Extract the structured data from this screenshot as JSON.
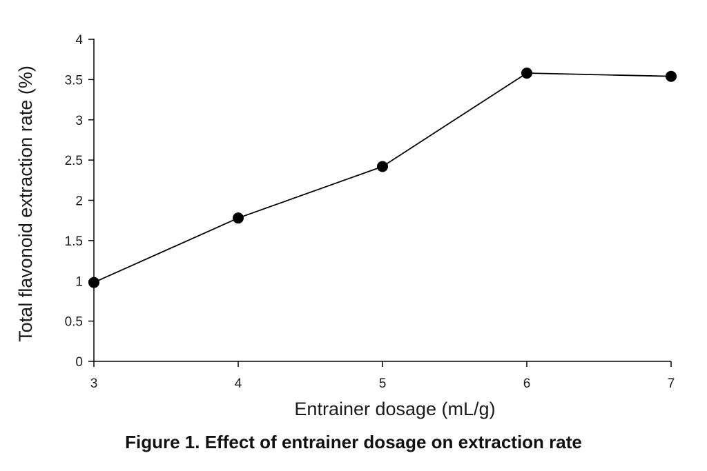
{
  "chart_data": {
    "type": "line",
    "title": "Figure 1. Effect of entrainer dosage on extraction rate",
    "xlabel": "Entrainer dosage (mL/g)",
    "ylabel": "Total flavonoid extraction rate (%)",
    "x": [
      3,
      4,
      5,
      6,
      7
    ],
    "series": [
      {
        "name": "Total flavonoid extraction rate",
        "values": [
          0.98,
          1.78,
          2.42,
          3.58,
          3.54
        ]
      }
    ],
    "xlim": [
      3,
      7
    ],
    "ylim": [
      0,
      4
    ],
    "xticks": [
      "3",
      "4",
      "5",
      "6",
      "7"
    ],
    "yticks": [
      "0",
      "0.5",
      "1",
      "1.5",
      "2",
      "2.5",
      "3",
      "3.5",
      "4"
    ],
    "grid": false,
    "legend": "none",
    "line_color": "#000000",
    "marker_color": "#000000"
  }
}
